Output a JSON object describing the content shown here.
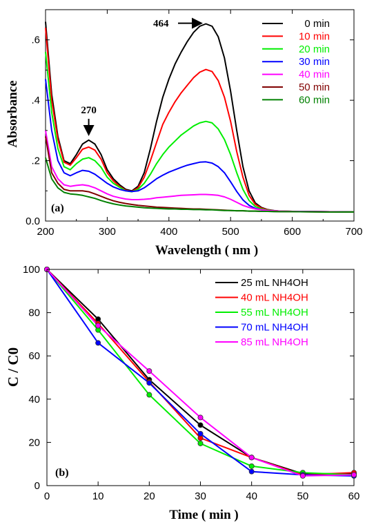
{
  "chart_data": [
    {
      "type": "line",
      "panel_label": "(a)",
      "xlabel": "Wavelength ( nm )",
      "ylabel": "Absorbance",
      "xlim": [
        200,
        700
      ],
      "ylim": [
        0.0,
        0.7
      ],
      "x_ticks": [
        200,
        300,
        400,
        500,
        600,
        700
      ],
      "y_ticks": [
        0.0,
        0.2,
        0.4,
        0.6
      ],
      "y_tick_labels": [
        "0.0",
        ".2",
        ".4",
        ".6"
      ],
      "grid": false,
      "legend_position": "top-right",
      "annotations": [
        {
          "text": "464",
          "x": 464,
          "y": 0.655
        },
        {
          "text": "270",
          "x": 270,
          "y": 0.27
        }
      ],
      "x": [
        200,
        210,
        220,
        230,
        240,
        250,
        260,
        270,
        280,
        290,
        300,
        310,
        320,
        330,
        340,
        350,
        360,
        370,
        380,
        390,
        400,
        410,
        420,
        430,
        440,
        450,
        460,
        470,
        480,
        490,
        500,
        510,
        520,
        530,
        540,
        550,
        560,
        570,
        580,
        600,
        650,
        700
      ],
      "series": [
        {
          "name": "0 min",
          "color": "#000000",
          "values": [
            0.66,
            0.42,
            0.28,
            0.2,
            0.19,
            0.22,
            0.255,
            0.268,
            0.255,
            0.22,
            0.17,
            0.14,
            0.12,
            0.105,
            0.1,
            0.115,
            0.16,
            0.24,
            0.33,
            0.41,
            0.47,
            0.52,
            0.56,
            0.595,
            0.625,
            0.645,
            0.653,
            0.645,
            0.61,
            0.54,
            0.43,
            0.3,
            0.18,
            0.1,
            0.06,
            0.045,
            0.038,
            0.035,
            0.033,
            0.032,
            0.031,
            0.03
          ]
        },
        {
          "name": "10 min",
          "color": "#ff0000",
          "values": [
            0.64,
            0.4,
            0.27,
            0.195,
            0.185,
            0.21,
            0.238,
            0.245,
            0.235,
            0.205,
            0.16,
            0.133,
            0.115,
            0.102,
            0.098,
            0.11,
            0.145,
            0.2,
            0.26,
            0.32,
            0.36,
            0.395,
            0.425,
            0.45,
            0.475,
            0.493,
            0.502,
            0.495,
            0.465,
            0.41,
            0.33,
            0.23,
            0.145,
            0.085,
            0.055,
            0.043,
            0.037,
            0.034,
            0.033,
            0.032,
            0.031,
            0.03
          ]
        },
        {
          "name": "20 min",
          "color": "#00ee00",
          "values": [
            0.56,
            0.36,
            0.24,
            0.18,
            0.17,
            0.19,
            0.205,
            0.21,
            0.2,
            0.178,
            0.145,
            0.125,
            0.112,
            0.1,
            0.097,
            0.105,
            0.125,
            0.155,
            0.19,
            0.22,
            0.245,
            0.265,
            0.285,
            0.3,
            0.315,
            0.325,
            0.33,
            0.325,
            0.305,
            0.27,
            0.22,
            0.16,
            0.105,
            0.068,
            0.048,
            0.04,
            0.036,
            0.034,
            0.033,
            0.032,
            0.031,
            0.03
          ]
        },
        {
          "name": "30 min",
          "color": "#0000ff",
          "values": [
            0.47,
            0.3,
            0.2,
            0.16,
            0.15,
            0.16,
            0.168,
            0.165,
            0.155,
            0.14,
            0.125,
            0.113,
            0.105,
            0.1,
            0.098,
            0.1,
            0.11,
            0.125,
            0.14,
            0.152,
            0.162,
            0.17,
            0.178,
            0.185,
            0.19,
            0.195,
            0.196,
            0.192,
            0.18,
            0.16,
            0.13,
            0.098,
            0.07,
            0.052,
            0.042,
            0.037,
            0.034,
            0.033,
            0.032,
            0.032,
            0.031,
            0.03
          ]
        },
        {
          "name": "40 min",
          "color": "#ff00ff",
          "values": [
            0.3,
            0.18,
            0.14,
            0.12,
            0.115,
            0.118,
            0.12,
            0.117,
            0.11,
            0.1,
            0.09,
            0.082,
            0.077,
            0.073,
            0.071,
            0.071,
            0.072,
            0.074,
            0.077,
            0.079,
            0.081,
            0.083,
            0.085,
            0.086,
            0.087,
            0.088,
            0.088,
            0.087,
            0.085,
            0.08,
            0.072,
            0.062,
            0.052,
            0.045,
            0.04,
            0.037,
            0.035,
            0.034,
            0.033,
            0.032,
            0.031,
            0.03
          ]
        },
        {
          "name": "50 min",
          "color": "#800000",
          "values": [
            0.28,
            0.16,
            0.125,
            0.105,
            0.1,
            0.1,
            0.1,
            0.097,
            0.09,
            0.082,
            0.074,
            0.067,
            0.062,
            0.058,
            0.055,
            0.052,
            0.05,
            0.048,
            0.046,
            0.045,
            0.044,
            0.043,
            0.042,
            0.041,
            0.04,
            0.04,
            0.039,
            0.038,
            0.037,
            0.036,
            0.035,
            0.034,
            0.034,
            0.033,
            0.033,
            0.032,
            0.032,
            0.032,
            0.031,
            0.031,
            0.03,
            0.03
          ]
        },
        {
          "name": "60 min",
          "color": "#008000",
          "values": [
            0.21,
            0.14,
            0.11,
            0.095,
            0.09,
            0.088,
            0.085,
            0.08,
            0.075,
            0.068,
            0.062,
            0.057,
            0.053,
            0.05,
            0.048,
            0.046,
            0.044,
            0.043,
            0.042,
            0.041,
            0.04,
            0.04,
            0.039,
            0.039,
            0.038,
            0.038,
            0.037,
            0.037,
            0.036,
            0.035,
            0.035,
            0.034,
            0.034,
            0.033,
            0.033,
            0.032,
            0.032,
            0.031,
            0.031,
            0.031,
            0.03,
            0.03
          ]
        }
      ]
    },
    {
      "type": "line",
      "panel_label": "(b)",
      "xlabel": "Time ( min )",
      "ylabel": "C / C0",
      "xlim": [
        0,
        60
      ],
      "ylim": [
        0,
        100
      ],
      "x_ticks": [
        0,
        10,
        20,
        30,
        40,
        50,
        60
      ],
      "y_ticks": [
        0,
        20,
        40,
        60,
        80,
        100
      ],
      "grid": false,
      "legend_position": "top-right",
      "x": [
        0,
        10,
        20,
        30,
        40,
        50,
        60
      ],
      "series": [
        {
          "name": "25 mL NH4OH",
          "color": "#000000",
          "values": [
            100,
            77,
            49,
            28,
            13,
            5.5,
            5.5
          ]
        },
        {
          "name": "40 mL NH4OH",
          "color": "#ff0000",
          "values": [
            100,
            75,
            48,
            22,
            13,
            5,
            6
          ]
        },
        {
          "name": "55 mL NH4OH",
          "color": "#00ee00",
          "values": [
            100,
            72,
            42,
            19.5,
            9,
            6,
            5
          ]
        },
        {
          "name": "70 mL NH4OH",
          "color": "#0000ff",
          "values": [
            100,
            66,
            47.5,
            24,
            6.5,
            5,
            4.5
          ]
        },
        {
          "name": "85 mL NH4OH",
          "color": "#ff00ff",
          "values": [
            100,
            74,
            53,
            31.5,
            13,
            4.5,
            5
          ]
        }
      ]
    }
  ]
}
